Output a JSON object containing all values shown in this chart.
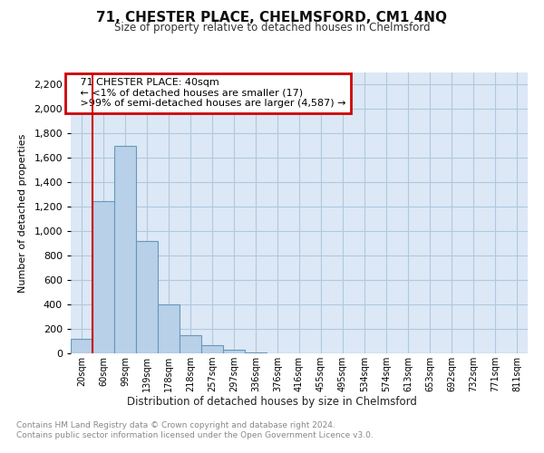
{
  "title1": "71, CHESTER PLACE, CHELMSFORD, CM1 4NQ",
  "title2": "Size of property relative to detached houses in Chelmsford",
  "xlabel": "Distribution of detached houses by size in Chelmsford",
  "ylabel": "Number of detached properties",
  "footnote1": "Contains HM Land Registry data © Crown copyright and database right 2024.",
  "footnote2": "Contains public sector information licensed under the Open Government Licence v3.0.",
  "annotation_line1": "   71 CHESTER PLACE: 40sqm",
  "annotation_line2": "   ← <1% of detached houses are smaller (17)",
  "annotation_line3": "   >99% of semi-detached houses are larger (4,587) →",
  "bar_color": "#b8d0e8",
  "bar_edge_color": "#6699bb",
  "annotation_box_edge": "#cc0000",
  "categories": [
    "20sqm",
    "60sqm",
    "99sqm",
    "139sqm",
    "178sqm",
    "218sqm",
    "257sqm",
    "297sqm",
    "336sqm",
    "376sqm",
    "416sqm",
    "455sqm",
    "495sqm",
    "534sqm",
    "574sqm",
    "613sqm",
    "653sqm",
    "692sqm",
    "732sqm",
    "771sqm",
    "811sqm"
  ],
  "values": [
    120,
    1250,
    1700,
    920,
    400,
    150,
    70,
    30,
    10,
    0,
    0,
    0,
    0,
    0,
    0,
    0,
    0,
    0,
    0,
    0,
    0
  ],
  "ylim": [
    0,
    2300
  ],
  "yticks": [
    0,
    200,
    400,
    600,
    800,
    1000,
    1200,
    1400,
    1600,
    1800,
    2000,
    2200
  ],
  "background_color": "#ffffff",
  "plot_bg_color": "#dce8f5",
  "grid_color": "#b0c8e0"
}
